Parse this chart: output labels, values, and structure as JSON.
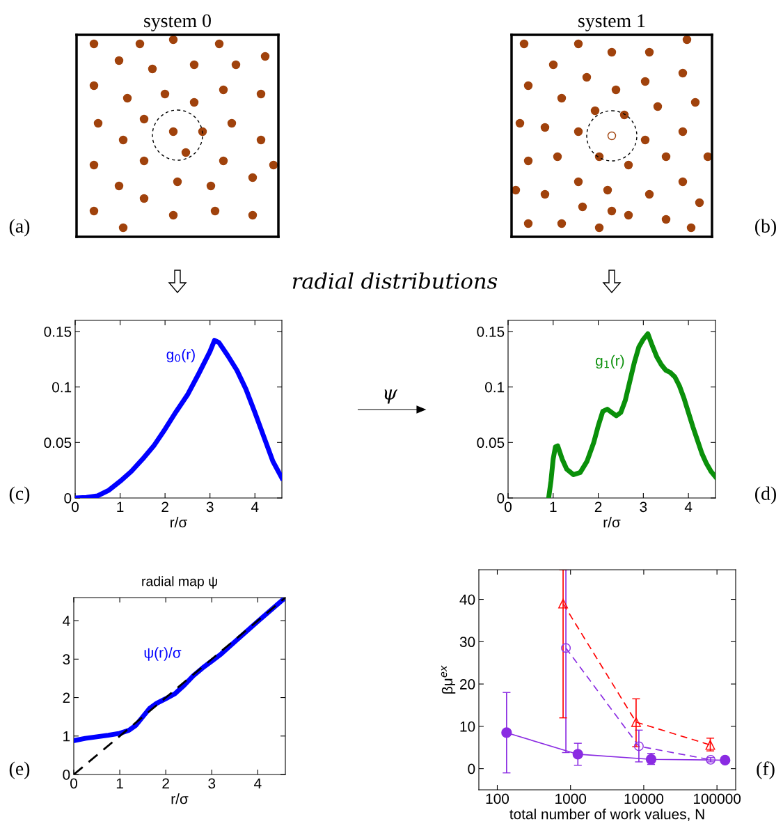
{
  "chart_data": [
    {
      "type": "other",
      "title": "system 0",
      "annotations": [
        "(a)",
        "radial distributions"
      ]
    },
    {
      "type": "other",
      "title": "system 1",
      "annotations": [
        "(b)"
      ]
    },
    {
      "type": "line",
      "xlabel": "r/σ",
      "xlim": [
        0,
        4.6
      ],
      "ylim": [
        0,
        0.16
      ],
      "xticks": [
        0,
        1,
        2,
        3,
        4
      ],
      "yticks": [
        0,
        0.05,
        0.1,
        0.15
      ],
      "legend": false,
      "grid": false,
      "annotations": [
        "(c)",
        "ψ"
      ],
      "series": [
        {
          "name": "g$_{0}$(r)",
          "color": "#0000ff",
          "line_style": "solid",
          "x": [
            0,
            0.25,
            0.5,
            0.75,
            1.0,
            1.25,
            1.5,
            1.75,
            2.0,
            2.25,
            2.5,
            2.75,
            3.0,
            3.1,
            3.2,
            3.4,
            3.6,
            3.8,
            4.0,
            4.2,
            4.4,
            4.6
          ],
          "values": [
            0,
            0.0005,
            0.002,
            0.007,
            0.015,
            0.024,
            0.035,
            0.047,
            0.062,
            0.078,
            0.093,
            0.112,
            0.132,
            0.142,
            0.14,
            0.128,
            0.115,
            0.098,
            0.077,
            0.055,
            0.033,
            0.018
          ]
        }
      ]
    },
    {
      "type": "line",
      "xlabel": "r/σ",
      "xlim": [
        0,
        4.6
      ],
      "ylim": [
        0,
        0.16
      ],
      "xticks": [
        0,
        1,
        2,
        3,
        4
      ],
      "yticks": [
        0,
        0.05,
        0.1,
        0.15
      ],
      "legend": false,
      "grid": false,
      "annotations": [
        "(d)"
      ],
      "series": [
        {
          "name": "g$_{1}$(r)",
          "color": "#0a900a",
          "line_style": "solid",
          "x": [
            0.9,
            0.95,
            1.0,
            1.05,
            1.1,
            1.2,
            1.3,
            1.45,
            1.6,
            1.75,
            1.9,
            2.0,
            2.1,
            2.2,
            2.3,
            2.4,
            2.5,
            2.6,
            2.7,
            2.8,
            2.9,
            3.0,
            3.1,
            3.2,
            3.3,
            3.4,
            3.5,
            3.6,
            3.7,
            3.8,
            3.9,
            4.0,
            4.1,
            4.2,
            4.3,
            4.4,
            4.5,
            4.6
          ],
          "values": [
            0,
            0.015,
            0.035,
            0.046,
            0.047,
            0.035,
            0.026,
            0.021,
            0.023,
            0.033,
            0.05,
            0.065,
            0.078,
            0.08,
            0.077,
            0.074,
            0.077,
            0.088,
            0.105,
            0.122,
            0.136,
            0.143,
            0.148,
            0.137,
            0.127,
            0.12,
            0.115,
            0.113,
            0.109,
            0.101,
            0.09,
            0.077,
            0.064,
            0.052,
            0.04,
            0.031,
            0.024,
            0.019
          ]
        }
      ]
    },
    {
      "type": "line",
      "title": "radial map ψ",
      "xlabel": "r/σ",
      "xlim": [
        0,
        4.6
      ],
      "ylim": [
        0,
        4.6
      ],
      "xticks": [
        0,
        1,
        2,
        3,
        4
      ],
      "yticks": [
        0,
        1,
        2,
        3,
        4
      ],
      "legend": false,
      "grid": false,
      "annotations": [
        "(e)"
      ],
      "series": [
        {
          "name": "ψ(r)/σ",
          "color": "#0000ff",
          "line_style": "solid",
          "x": [
            0,
            0.25,
            0.5,
            0.75,
            1.0,
            1.2,
            1.35,
            1.5,
            1.65,
            1.8,
            2.0,
            2.2,
            2.4,
            2.6,
            2.8,
            3.0,
            3.2,
            3.5,
            4.0,
            4.6
          ],
          "values": [
            0.88,
            0.94,
            0.98,
            1.02,
            1.07,
            1.15,
            1.28,
            1.5,
            1.72,
            1.85,
            1.97,
            2.1,
            2.32,
            2.57,
            2.77,
            2.95,
            3.13,
            3.45,
            3.98,
            4.6
          ]
        },
        {
          "color": "#000000",
          "line_style": "dashed",
          "x": [
            0,
            4.6
          ],
          "values": [
            0,
            4.6
          ]
        }
      ]
    },
    {
      "type": "line",
      "xlabel": "total number of work values, N",
      "ylabel": "βμ$^{ex}$",
      "log": "x",
      "xlim": [
        56,
        180000
      ],
      "ylim": [
        -5,
        47
      ],
      "xticks": [
        100,
        1000,
        10000,
        100000
      ],
      "yticks": [
        0,
        10,
        20,
        30,
        40
      ],
      "legend": false,
      "grid": false,
      "annotations": [
        "(f)"
      ],
      "series": [
        {
          "color": "#8a2be2",
          "line_style": "solid",
          "marker": "circle",
          "x": [
            134,
            1260,
            12600,
            129000
          ],
          "values": [
            8.5,
            3.4,
            2.2,
            2.0
          ],
          "errors": [
            [
              -1,
              18
            ],
            [
              0.8,
              6
            ],
            [
              1,
              3.6
            ],
            null
          ]
        },
        {
          "color": "#8a2be2",
          "line_style": "dashed",
          "marker": "circle",
          "x": [
            865,
            8580,
            82000
          ],
          "values": [
            28.5,
            5.3,
            2.1
          ],
          "errors": [
            [
              3.8,
              47
            ],
            [
              1.6,
              9.1
            ],
            [
              1.6,
              2.6
            ]
          ]
        },
        {
          "color": "#ff0000",
          "line_style": "dashed",
          "marker": "triangle",
          "x": [
            792,
            7860,
            81000
          ],
          "values": [
            39,
            11,
            5.6
          ],
          "errors": [
            [
              12,
              47
            ],
            [
              5.2,
              16.5
            ],
            [
              4.2,
              7.2
            ]
          ]
        }
      ]
    }
  ]
}
